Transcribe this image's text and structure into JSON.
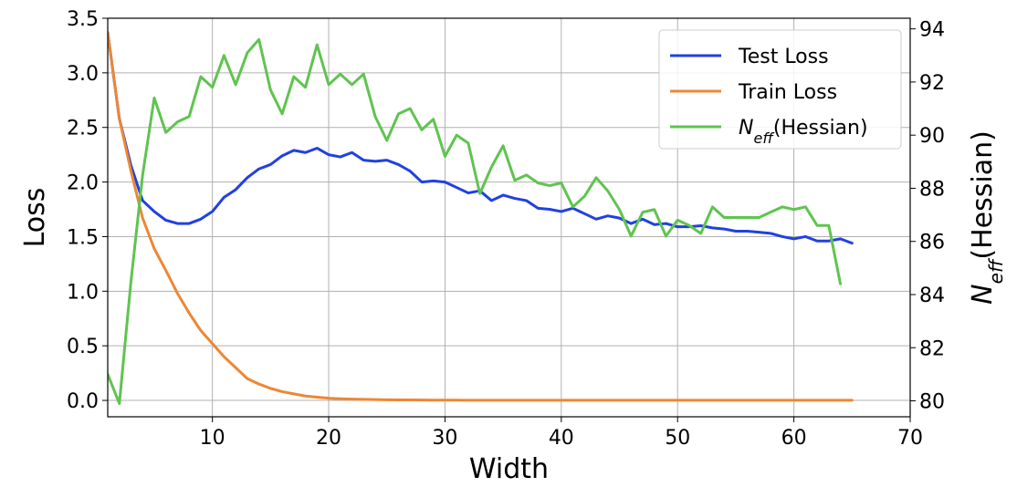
{
  "chart_data": {
    "type": "line",
    "xlabel": "Width",
    "ylabel_left": "Loss",
    "ylabel_right": {
      "main": "N",
      "sub": "eff",
      "rest": "(Hessian)"
    },
    "xlim": [
      1,
      70
    ],
    "ylim_left": [
      -0.15,
      3.5
    ],
    "ylim_right": [
      79.4,
      94.4
    ],
    "x_ticks": [
      10,
      20,
      30,
      40,
      50,
      60,
      70
    ],
    "y_ticks_left": [
      0.0,
      0.5,
      1.0,
      1.5,
      2.0,
      2.5,
      3.0,
      3.5
    ],
    "y_ticks_right": [
      80,
      82,
      84,
      86,
      88,
      90,
      92,
      94
    ],
    "grid": true,
    "legend_position": "top-right",
    "series": [
      {
        "name": "Test Loss",
        "axis": "left",
        "color": "#2041e0",
        "x": [
          1,
          2,
          3,
          4,
          5,
          6,
          7,
          8,
          9,
          10,
          11,
          12,
          13,
          14,
          15,
          16,
          17,
          18,
          19,
          20,
          21,
          22,
          23,
          24,
          25,
          26,
          27,
          28,
          29,
          30,
          31,
          32,
          33,
          34,
          35,
          36,
          37,
          38,
          39,
          40,
          41,
          42,
          43,
          44,
          45,
          46,
          47,
          48,
          49,
          50,
          51,
          52,
          53,
          54,
          55,
          56,
          57,
          58,
          59,
          60,
          61,
          62,
          63,
          64,
          65
        ],
        "values": [
          3.37,
          2.58,
          2.15,
          1.83,
          1.73,
          1.65,
          1.62,
          1.62,
          1.66,
          1.73,
          1.86,
          1.93,
          2.04,
          2.12,
          2.16,
          2.24,
          2.29,
          2.27,
          2.31,
          2.25,
          2.23,
          2.27,
          2.2,
          2.19,
          2.2,
          2.16,
          2.1,
          2.0,
          2.01,
          2.0,
          1.95,
          1.9,
          1.92,
          1.83,
          1.88,
          1.85,
          1.83,
          1.76,
          1.75,
          1.73,
          1.76,
          1.71,
          1.66,
          1.69,
          1.67,
          1.62,
          1.66,
          1.61,
          1.62,
          1.59,
          1.59,
          1.6,
          1.58,
          1.57,
          1.55,
          1.55,
          1.54,
          1.53,
          1.5,
          1.48,
          1.5,
          1.46,
          1.46,
          1.48,
          1.44
        ]
      },
      {
        "name": "Train Loss",
        "axis": "left",
        "color": "#ed8735",
        "x": [
          1,
          2,
          3,
          4,
          5,
          6,
          7,
          8,
          9,
          10,
          11,
          12,
          13,
          14,
          15,
          16,
          17,
          18,
          19,
          20,
          21,
          22,
          23,
          24,
          25,
          26,
          27,
          28,
          29,
          30,
          31,
          32,
          33,
          34,
          35,
          36,
          37,
          38,
          39,
          40,
          41,
          42,
          43,
          44,
          45,
          46,
          47,
          48,
          49,
          50,
          51,
          52,
          53,
          54,
          55,
          56,
          57,
          58,
          59,
          60,
          61,
          62,
          63,
          64,
          65
        ],
        "values": [
          3.37,
          2.58,
          2.1,
          1.67,
          1.39,
          1.19,
          0.98,
          0.8,
          0.64,
          0.52,
          0.4,
          0.3,
          0.2,
          0.15,
          0.11,
          0.08,
          0.06,
          0.04,
          0.03,
          0.02,
          0.015,
          0.012,
          0.01,
          0.008,
          0.006,
          0.005,
          0.004,
          0.003,
          0.002,
          0.002,
          0.002,
          0.001,
          0.001,
          0.001,
          0.001,
          0.001,
          0.001,
          0.001,
          0.001,
          0.001,
          0.001,
          0.001,
          0.001,
          0.001,
          0.001,
          0.001,
          0.001,
          0.001,
          0.001,
          0.001,
          0.001,
          0.001,
          0.001,
          0.001,
          0.001,
          0.001,
          0.001,
          0.001,
          0.001,
          0.001,
          0.001,
          0.001,
          0.001,
          0.001,
          0.001
        ]
      },
      {
        "name": "N_eff(Hessian)",
        "axis": "right",
        "color": "#5fc44f",
        "x": [
          1,
          2,
          3,
          4,
          5,
          6,
          7,
          8,
          9,
          10,
          11,
          12,
          13,
          14,
          15,
          16,
          17,
          18,
          19,
          20,
          21,
          22,
          23,
          24,
          25,
          26,
          27,
          28,
          29,
          30,
          31,
          32,
          33,
          34,
          35,
          36,
          37,
          38,
          39,
          40,
          41,
          42,
          43,
          44,
          45,
          46,
          47,
          48,
          49,
          50,
          51,
          52,
          53,
          54,
          55,
          56,
          57,
          58,
          59,
          60,
          61,
          62,
          63,
          64
        ],
        "values": [
          81.0,
          79.9,
          84.5,
          88.5,
          91.4,
          90.1,
          90.5,
          90.7,
          92.2,
          91.8,
          93.0,
          91.9,
          93.1,
          93.6,
          91.7,
          90.8,
          92.2,
          91.8,
          93.4,
          91.9,
          92.3,
          91.9,
          92.3,
          90.7,
          89.8,
          90.8,
          91.0,
          90.2,
          90.6,
          89.2,
          90.0,
          89.7,
          87.8,
          88.8,
          89.6,
          88.3,
          88.5,
          88.2,
          88.1,
          88.2,
          87.3,
          87.7,
          88.4,
          87.9,
          87.2,
          86.2,
          87.1,
          87.2,
          86.2,
          86.8,
          86.6,
          86.3,
          87.3,
          86.9,
          86.9,
          86.9,
          86.9,
          87.1,
          87.3,
          87.2,
          87.3,
          86.6,
          86.6,
          84.4
        ]
      }
    ]
  },
  "legend": {
    "items": [
      {
        "label": "Test Loss"
      },
      {
        "label": "Train Loss"
      },
      {
        "label_main": "N",
        "label_sub": "eff",
        "label_rest": "(Hessian)"
      }
    ]
  }
}
